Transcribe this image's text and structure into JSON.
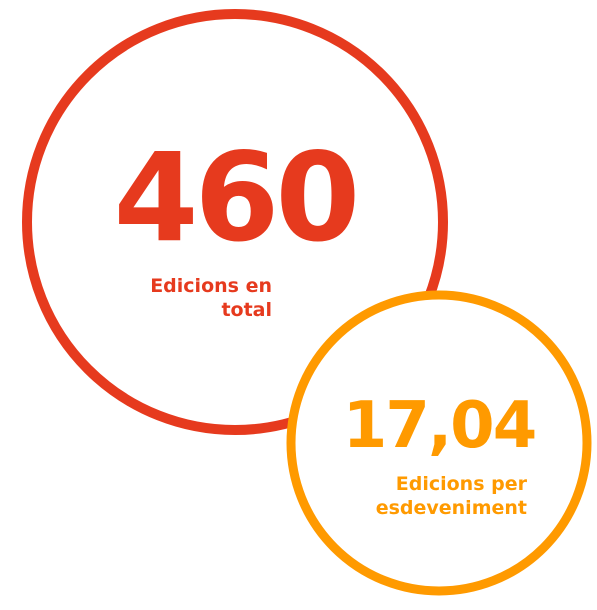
{
  "stats": [
    {
      "value": "460",
      "label_lines": [
        "Edicions en",
        "total"
      ]
    },
    {
      "value": "17,04",
      "label_lines": [
        "Edicions per",
        "esdeveniment"
      ]
    }
  ]
}
